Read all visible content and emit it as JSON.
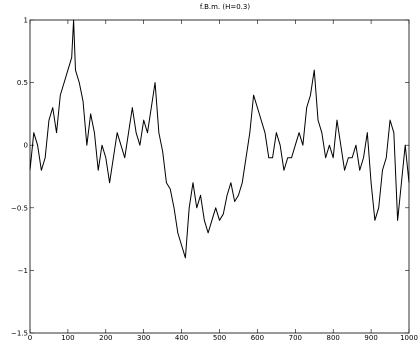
{
  "chart_data": {
    "type": "line",
    "title": "f.B.m. (H=0.3)",
    "xlabel": "",
    "ylabel": "",
    "xlim": [
      0,
      1000
    ],
    "ylim": [
      -1.5,
      1
    ],
    "x_ticks": [
      0,
      100,
      200,
      300,
      400,
      500,
      600,
      700,
      800,
      900,
      1000
    ],
    "y_ticks": [
      -1.5,
      -1,
      -0.5,
      0,
      0.5,
      1
    ],
    "x_tick_labels": [
      "0",
      "100",
      "200",
      "300",
      "400",
      "500",
      "600",
      "700",
      "800",
      "900",
      "1000"
    ],
    "y_tick_labels": [
      "−1.5",
      "−1",
      "−0.5",
      "0",
      "0.5",
      "1"
    ],
    "grid": false,
    "line_color": "#000000",
    "series": [
      {
        "x": [
          0,
          10,
          20,
          30,
          40,
          50,
          60,
          70,
          80,
          90,
          100,
          110,
          115,
          120,
          130,
          140,
          150,
          160,
          170,
          180,
          190,
          200,
          210,
          220,
          230,
          240,
          250,
          260,
          270,
          280,
          290,
          300,
          310,
          320,
          330,
          340,
          350,
          360,
          370,
          380,
          390,
          400,
          410,
          420,
          430,
          440,
          450,
          460,
          470,
          480,
          490,
          500,
          510,
          520,
          530,
          540,
          550,
          560,
          570,
          580,
          590,
          600,
          610,
          620,
          630,
          640,
          650,
          660,
          670,
          680,
          690,
          700,
          710,
          720,
          730,
          740,
          750,
          760,
          770,
          780,
          790,
          800,
          810,
          820,
          830,
          840,
          850,
          860,
          870,
          880,
          890,
          900,
          910,
          920,
          930,
          940,
          950,
          960,
          970,
          980,
          990,
          1000
        ],
        "y": [
          -0.2,
          0.1,
          0.0,
          -0.2,
          -0.1,
          0.2,
          0.3,
          0.1,
          0.4,
          0.5,
          0.6,
          0.7,
          1.0,
          0.6,
          0.5,
          0.35,
          0.0,
          0.25,
          0.1,
          -0.2,
          0.0,
          -0.1,
          -0.3,
          -0.1,
          0.1,
          0.0,
          -0.1,
          0.1,
          0.3,
          0.1,
          0.0,
          0.2,
          0.1,
          0.3,
          0.5,
          0.1,
          -0.05,
          -0.3,
          -0.35,
          -0.5,
          -0.7,
          -0.8,
          -0.9,
          -0.5,
          -0.3,
          -0.5,
          -0.4,
          -0.6,
          -0.7,
          -0.6,
          -0.5,
          -0.6,
          -0.55,
          -0.4,
          -0.3,
          -0.45,
          -0.4,
          -0.3,
          -0.1,
          0.1,
          0.4,
          0.3,
          0.2,
          0.1,
          -0.1,
          -0.1,
          0.1,
          0.0,
          -0.2,
          -0.1,
          -0.1,
          0.0,
          0.1,
          0.0,
          0.3,
          0.4,
          0.6,
          0.2,
          0.1,
          -0.1,
          0.0,
          -0.1,
          0.2,
          0.0,
          -0.2,
          -0.1,
          -0.1,
          0.0,
          -0.2,
          -0.1,
          0.1,
          -0.3,
          -0.6,
          -0.5,
          -0.2,
          -0.1,
          0.2,
          0.1,
          -0.6,
          -0.3,
          0.0,
          -0.3
        ]
      }
    ]
  }
}
